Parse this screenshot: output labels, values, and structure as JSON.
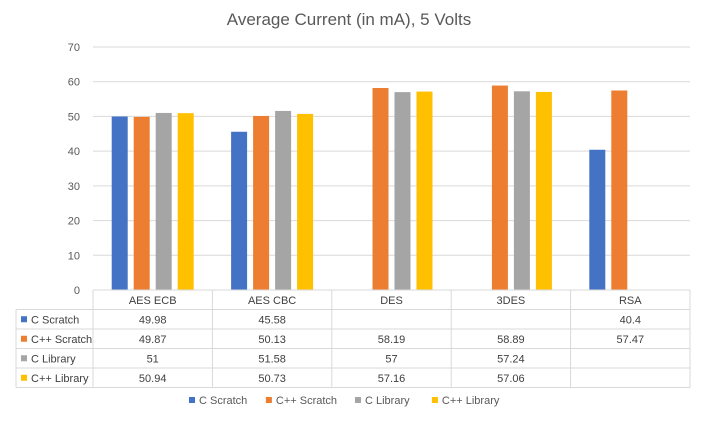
{
  "chart_data": {
    "type": "bar",
    "title": "Average Current (in mA), 5 Volts",
    "categories": [
      "AES ECB",
      "AES CBC",
      "DES",
      "3DES",
      "RSA"
    ],
    "series": [
      {
        "name": "C Scratch",
        "color": "#4472C4",
        "values": [
          49.98,
          45.58,
          null,
          null,
          40.4
        ]
      },
      {
        "name": "C++ Scratch",
        "color": "#ED7D31",
        "values": [
          49.87,
          50.13,
          58.19,
          58.89,
          57.47
        ]
      },
      {
        "name": "C Library",
        "color": "#A5A5A5",
        "values": [
          51,
          51.58,
          57,
          57.24,
          null
        ]
      },
      {
        "name": "C++ Library",
        "color": "#FFC000",
        "values": [
          50.94,
          50.73,
          57.16,
          57.06,
          null
        ]
      }
    ],
    "ylim": [
      0,
      70
    ],
    "yticks": [
      0,
      10,
      20,
      30,
      40,
      50,
      60,
      70
    ],
    "grid": true,
    "data_table": true,
    "legend_position": "bottom"
  }
}
